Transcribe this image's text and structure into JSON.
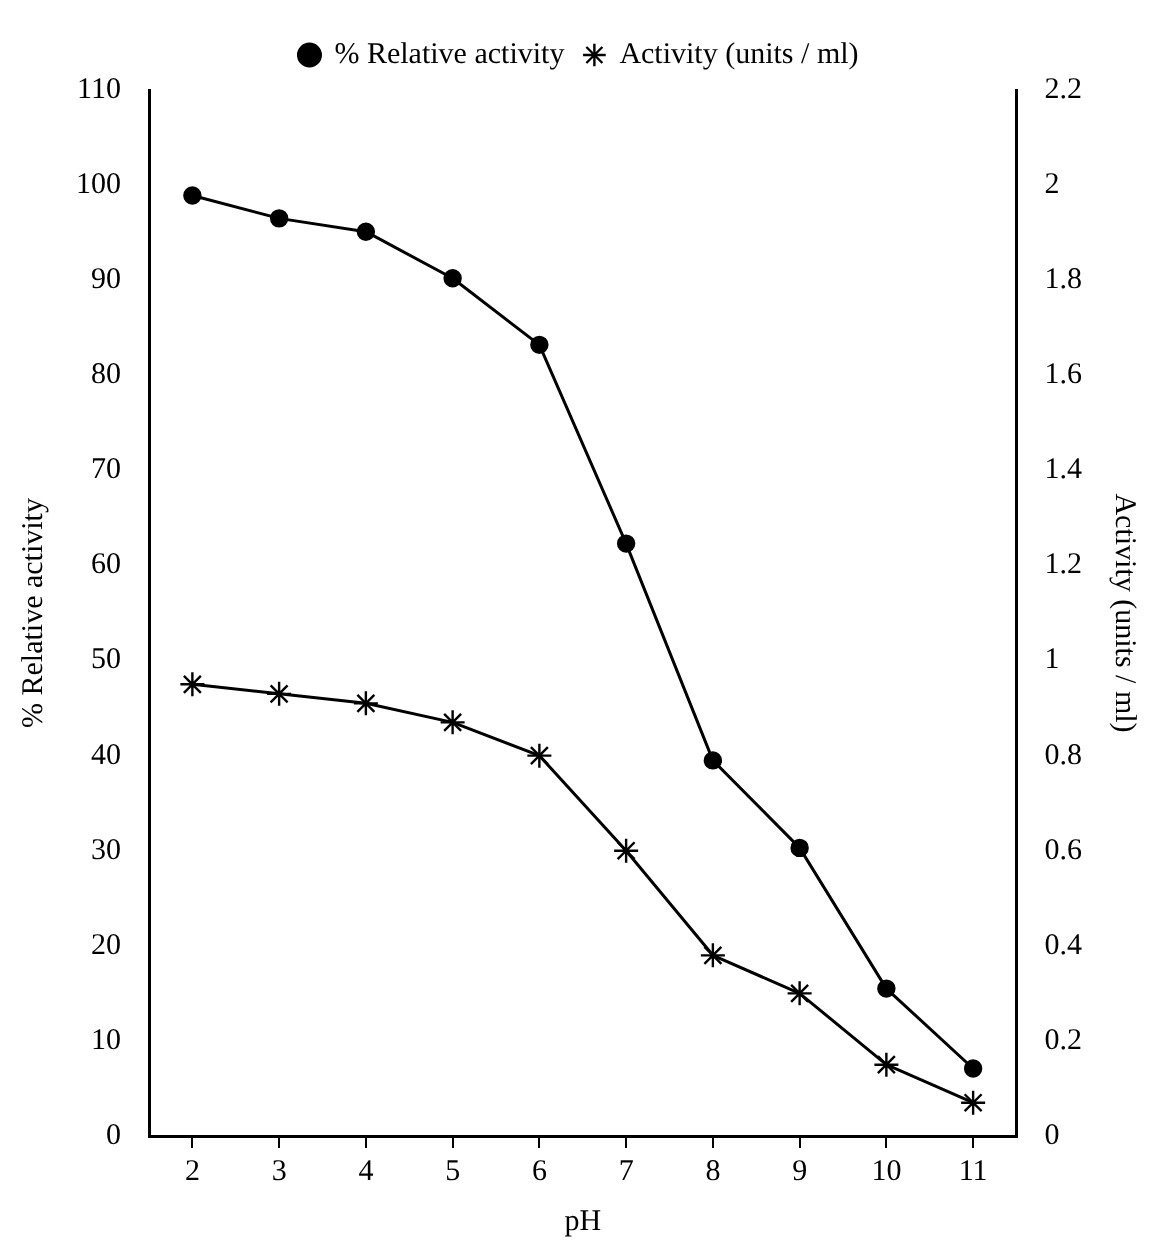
{
  "chart_data": {
    "type": "line",
    "xlabel": "pH",
    "ylabel": "% Relative activity",
    "y2label": "Activity (units / ml)",
    "categories": [
      "2",
      "3",
      "4",
      "5",
      "6",
      "7",
      "8",
      "9",
      "10",
      "11"
    ],
    "series": [
      {
        "name": "% Relative activity",
        "color": "#000000",
        "marker": "circle",
        "values": [
          98.9,
          96.5,
          95.1,
          90.2,
          83.2,
          62.3,
          39.5,
          30.3,
          15.5,
          7.1
        ]
      },
      {
        "name": "Activity (units / ml)",
        "color": "#000000",
        "marker": "cross",
        "axis": "y2",
        "values": [
          0.95,
          0.93,
          0.91,
          0.87,
          0.8,
          0.6,
          0.38,
          0.3,
          0.15,
          0.07
        ]
      }
    ],
    "ylim": [
      0,
      110
    ],
    "yticks": [
      0,
      10,
      20,
      30,
      40,
      50,
      60,
      70,
      80,
      90,
      100,
      110
    ],
    "y2lim": [
      0,
      2.2
    ],
    "y2ticks": [
      0,
      0.2,
      0.4,
      0.6,
      0.8,
      1,
      1.2,
      1.4,
      1.6,
      1.8,
      2,
      2.2
    ],
    "grid": false,
    "legend": "top",
    "line_style": "solid"
  }
}
